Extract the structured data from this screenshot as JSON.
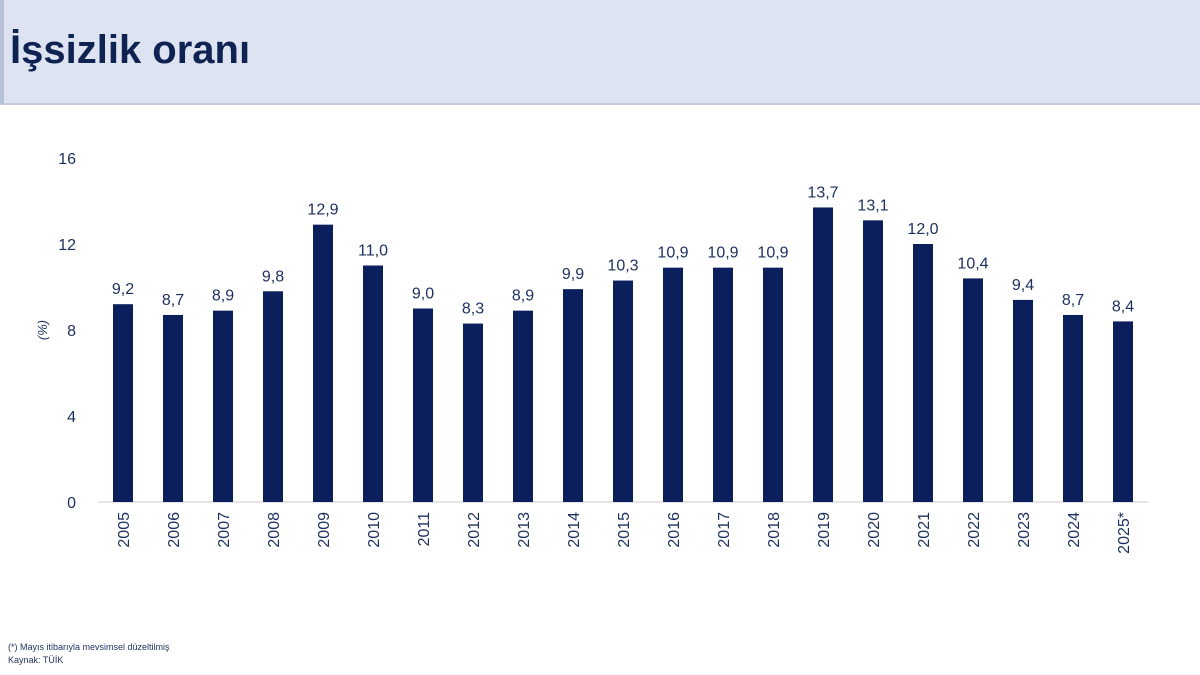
{
  "header": {
    "title": "İşsizlik oranı"
  },
  "chart_data": {
    "type": "bar",
    "title": "İşsizlik oranı",
    "ylabel": "(%)",
    "xlabel": "",
    "ylim": [
      0,
      16
    ],
    "yticks": [
      "0",
      "4",
      "8",
      "12",
      "16"
    ],
    "grid": false,
    "legend": "none",
    "bar_color": "#0a1f5c",
    "categories": [
      "2005",
      "2006",
      "2007",
      "2008",
      "2009",
      "2010",
      "2011",
      "2012",
      "2013",
      "2014",
      "2015",
      "2016",
      "2017",
      "2018",
      "2019",
      "2020",
      "2021",
      "2022",
      "2023",
      "2024",
      "2025*"
    ],
    "values": [
      9.2,
      8.7,
      8.9,
      9.8,
      12.9,
      11.0,
      9.0,
      8.3,
      8.9,
      9.9,
      10.3,
      10.9,
      10.9,
      10.9,
      13.7,
      13.1,
      12.0,
      10.4,
      9.4,
      8.7,
      8.4
    ],
    "data_labels": [
      "9,2",
      "8,7",
      "8,9",
      "9,8",
      "12,9",
      "11,0",
      "9,0",
      "8,3",
      "8,9",
      "9,9",
      "10,3",
      "10,9",
      "10,9",
      "10,9",
      "13,7",
      "13,1",
      "12,0",
      "10,4",
      "9,4",
      "8,7",
      "8,4"
    ]
  },
  "footnotes": {
    "note": "(*) Mayıs itibarıyla mevsimsel düzeltilmiş",
    "source": "Kaynak: TÜİK"
  }
}
